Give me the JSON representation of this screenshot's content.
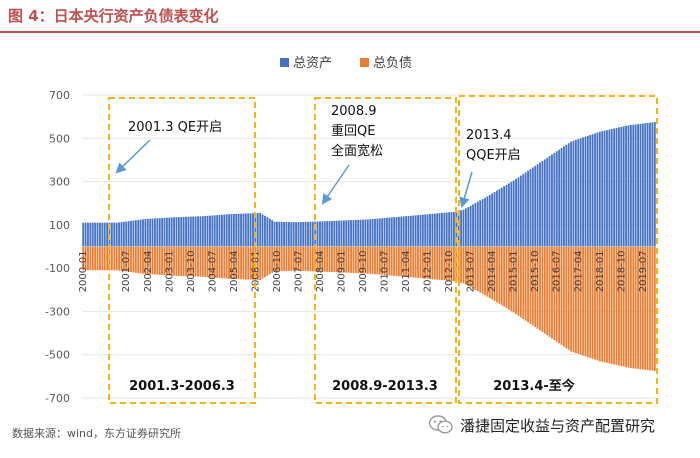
{
  "figure_title": "图 4：日本央行资产负债表变化",
  "source": "数据来源：wind，东方证券研究所",
  "brand": "潘捷固定收益与资产配置研究",
  "colors": {
    "title": "#c0504d",
    "assets": "#4472c4",
    "liabilities": "#ed7d31",
    "box": "#f5b316",
    "arrow": "#5b9bd5",
    "axis_text": "#595959"
  },
  "chart_data": {
    "type": "bar",
    "title": "",
    "xlabel": "",
    "ylabel": "",
    "ylim": [
      -700,
      700
    ],
    "yticks": [
      700,
      500,
      300,
      100,
      -100,
      -300,
      -500,
      -700
    ],
    "legend": {
      "position": "top-right",
      "entries": [
        "总资产",
        "总负债"
      ]
    },
    "series": [
      {
        "name": "总资产",
        "key": "assets"
      },
      {
        "name": "总负债",
        "key": "liabilities"
      }
    ],
    "x_tick_labels": [
      "2000-01",
      "2001-07",
      "2002-04",
      "2003-01",
      "2003-10",
      "2004-07",
      "2005-04",
      "2006-01",
      "2006-10",
      "2007-07",
      "2008-04",
      "2009-01",
      "2009-10",
      "2010-07",
      "2011-04",
      "2012-01",
      "2012-10",
      "2013-07",
      "2014-04",
      "2015-01",
      "2015-10",
      "2016-07",
      "2017-04",
      "2018-01",
      "2018-10",
      "2019-07"
    ],
    "anchors": [
      {
        "month": "2000-01",
        "assets": 110
      },
      {
        "month": "2001-03",
        "assets": 110
      },
      {
        "month": "2002-03",
        "assets": 127
      },
      {
        "month": "2003-03",
        "assets": 135
      },
      {
        "month": "2004-03",
        "assets": 140
      },
      {
        "month": "2005-03",
        "assets": 150
      },
      {
        "month": "2006-03",
        "assets": 155
      },
      {
        "month": "2006-09",
        "assets": 115
      },
      {
        "month": "2007-06",
        "assets": 112
      },
      {
        "month": "2008-09",
        "assets": 118
      },
      {
        "month": "2009-12",
        "assets": 125
      },
      {
        "month": "2011-06",
        "assets": 142
      },
      {
        "month": "2012-12",
        "assets": 160
      },
      {
        "month": "2013-04",
        "assets": 170
      },
      {
        "month": "2014-01",
        "assets": 225
      },
      {
        "month": "2015-01",
        "assets": 305
      },
      {
        "month": "2016-01",
        "assets": 395
      },
      {
        "month": "2017-01",
        "assets": 485
      },
      {
        "month": "2018-01",
        "assets": 530
      },
      {
        "month": "2019-01",
        "assets": 560
      },
      {
        "month": "2019-12",
        "assets": 575
      }
    ],
    "annotations": [
      {
        "key": "p1",
        "label": "2001.3 QE开启",
        "period": "2001.3-2006.3"
      },
      {
        "key": "p2",
        "label_lines": [
          "2008.9",
          "重回QE",
          "全面宽松"
        ],
        "period": "2008.9-2013.3"
      },
      {
        "key": "p3",
        "label_lines": [
          "2013.4",
          "QQE开启"
        ],
        "period": "2013.4-至今"
      }
    ]
  }
}
